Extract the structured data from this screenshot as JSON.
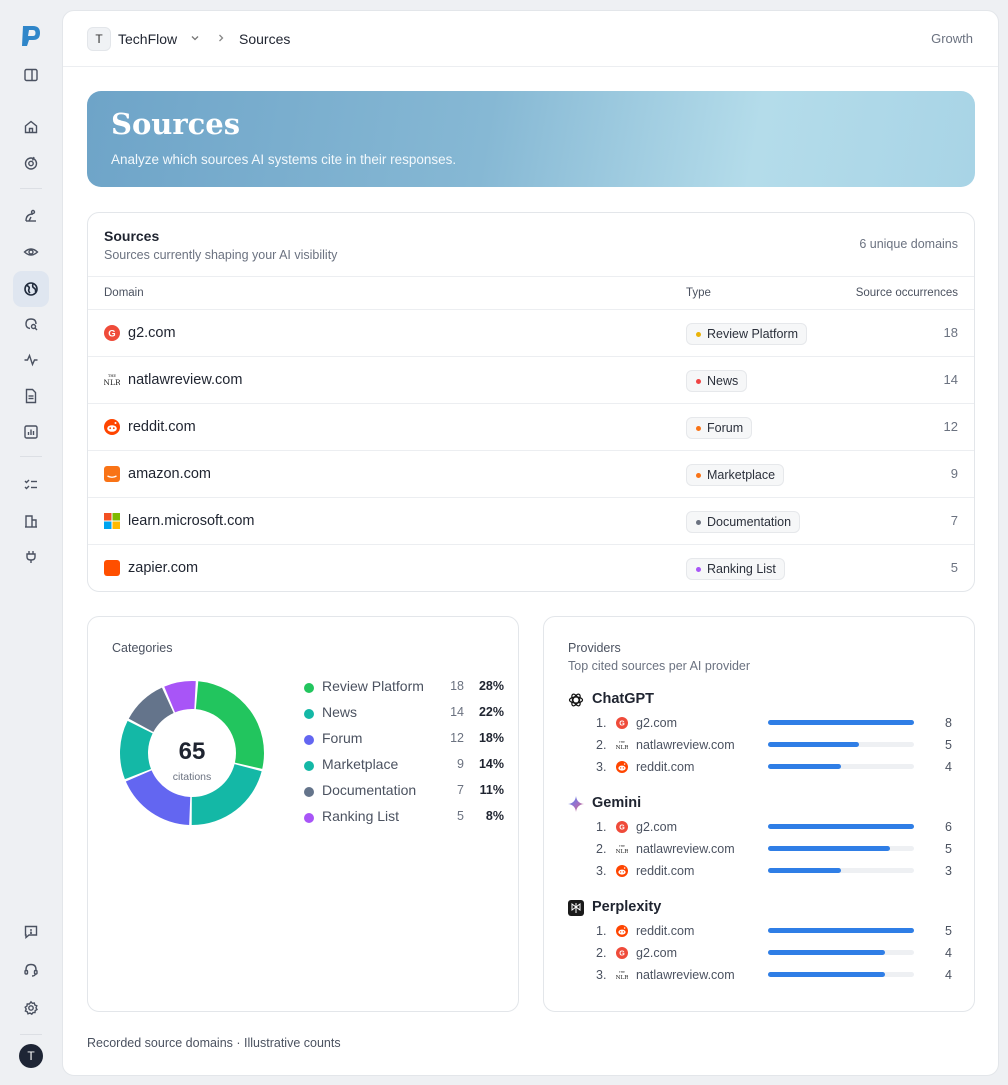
{
  "app": {
    "logo_letter": "P",
    "user_initial": "T"
  },
  "topbar": {
    "workspace_initial": "T",
    "workspace_name": "TechFlow",
    "current_page": "Sources",
    "plan": "Growth"
  },
  "hero": {
    "title": "Sources",
    "subtitle": "Analyze which sources AI systems cite in their responses."
  },
  "sources_table": {
    "title": "Sources",
    "subtitle": "Sources currently shaping your AI visibility",
    "summary": "6 unique domains",
    "columns": [
      "Domain",
      "Type",
      "Source occurrences"
    ],
    "rows": [
      {
        "domain": "g2.com",
        "type": "Review Platform",
        "type_color": "#eab308",
        "count": "18",
        "icon": "g2-icon"
      },
      {
        "domain": "natlawreview.com",
        "type": "News",
        "type_color": "#ef4444",
        "count": "14",
        "icon": "nlr-icon"
      },
      {
        "domain": "reddit.com",
        "type": "Forum",
        "type_color": "#f97316",
        "count": "12",
        "icon": "reddit-icon"
      },
      {
        "domain": "amazon.com",
        "type": "Marketplace",
        "type_color": "#f97316",
        "count": "9",
        "icon": "amazon-icon"
      },
      {
        "domain": "learn.microsoft.com",
        "type": "Documentation",
        "type_color": "#6b7280",
        "count": "7",
        "icon": "microsoft-icon"
      },
      {
        "domain": "zapier.com",
        "type": "Ranking List",
        "type_color": "#a855f7",
        "count": "5",
        "icon": "zapier-icon"
      }
    ]
  },
  "chart_data": {
    "type": "pie",
    "title": "Categories",
    "total": 65,
    "total_label": "citations",
    "categories": [
      "Review Platform",
      "News",
      "Forum",
      "Marketplace",
      "Documentation",
      "Ranking List"
    ],
    "values": [
      18,
      14,
      12,
      9,
      7,
      5
    ],
    "percents": [
      "28%",
      "22%",
      "18%",
      "14%",
      "11%",
      "8%"
    ],
    "colors": [
      "#22c55e",
      "#14b8a6",
      "#6366f1",
      "#14b8a6",
      "#64748b",
      "#a855f7"
    ]
  },
  "providers": {
    "title": "Providers",
    "subtitle": "Top cited sources per AI provider",
    "groups": [
      {
        "name": "ChatGPT",
        "icon": "chatgpt-icon",
        "max": 8,
        "items": [
          {
            "rank": "1.",
            "domain": "g2.com",
            "icon": "g2-icon",
            "value": 8
          },
          {
            "rank": "2.",
            "domain": "natlawreview.com",
            "icon": "nlr-icon",
            "value": 5
          },
          {
            "rank": "3.",
            "domain": "reddit.com",
            "icon": "reddit-icon",
            "value": 4
          }
        ]
      },
      {
        "name": "Gemini",
        "icon": "gemini-icon",
        "max": 6,
        "items": [
          {
            "rank": "1.",
            "domain": "g2.com",
            "icon": "g2-icon",
            "value": 6
          },
          {
            "rank": "2.",
            "domain": "natlawreview.com",
            "icon": "nlr-icon",
            "value": 5
          },
          {
            "rank": "3.",
            "domain": "reddit.com",
            "icon": "reddit-icon",
            "value": 3
          }
        ]
      },
      {
        "name": "Perplexity",
        "icon": "perplexity-icon",
        "max": 5,
        "items": [
          {
            "rank": "1.",
            "domain": "reddit.com",
            "icon": "reddit-icon",
            "value": 5
          },
          {
            "rank": "2.",
            "domain": "g2.com",
            "icon": "g2-icon",
            "value": 4
          },
          {
            "rank": "3.",
            "domain": "natlawreview.com",
            "icon": "nlr-icon",
            "value": 4
          }
        ]
      }
    ]
  },
  "footer": {
    "note": "Recorded source domains · Illustrative counts"
  }
}
